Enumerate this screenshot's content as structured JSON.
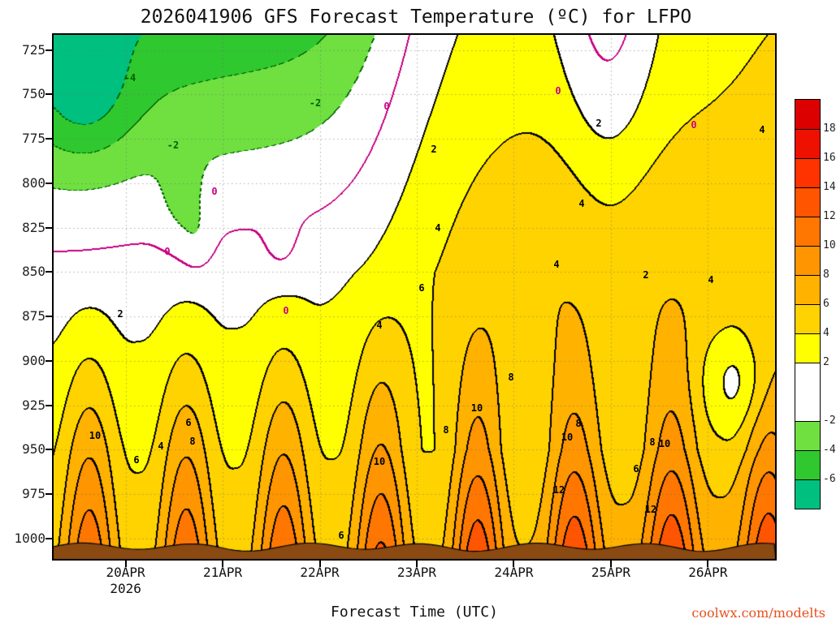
{
  "chart_data": {
    "type": "contour",
    "title": "2026041906 GFS Forecast Temperature (ºC) for LFPO",
    "xlabel": "Forecast Time (UTC)",
    "x_year": "2026",
    "x_ticks": [
      "20APR",
      "21APR",
      "22APR",
      "23APR",
      "24APR",
      "25APR",
      "26APR"
    ],
    "y_ticks": [
      "725",
      "750",
      "775",
      "800",
      "825",
      "850",
      "875",
      "900",
      "925",
      "950",
      "975",
      "1000"
    ],
    "y_tick_pressures": [
      725,
      750,
      775,
      800,
      825,
      850,
      875,
      900,
      925,
      950,
      975,
      1000
    ],
    "y_axis_range": {
      "top_pressure": 716,
      "bottom_pressure": 1012
    },
    "time_axis": {
      "start_hour_utc": 6,
      "total_days": 7.45,
      "first_tick_day": 0.75,
      "tick_interval_days": 1
    },
    "fill_levels": [
      -6,
      -4,
      -2,
      2,
      4,
      6,
      8,
      10,
      12,
      14,
      16,
      18
    ],
    "fill_colors": [
      "#00c080",
      "#2fc82f",
      "#6fe040",
      "#ffffff",
      "#ffff00",
      "#ffd300",
      "#ffb200",
      "#ff9500",
      "#ff7700",
      "#ff5500",
      "#ff3300",
      "#ee1100",
      "#dd0000"
    ],
    "contour_levels": [
      -6,
      -4,
      -2,
      0,
      2,
      4,
      6,
      8,
      10,
      12,
      14
    ],
    "line_colors": {
      "zero": "#c80082",
      "positive": "#000000",
      "negative": "#006400"
    },
    "grid_color": "#6e6e6e",
    "terrain_color": "#8a4a12",
    "colorbar": {
      "labels": [
        "18",
        "16",
        "14",
        "12",
        "10",
        "8",
        "6",
        "4",
        "2",
        "-2",
        "-4",
        "-6"
      ],
      "colors_top_to_bottom": [
        "#dd0000",
        "#ee1100",
        "#ff3300",
        "#ff5500",
        "#ff7700",
        "#ff9500",
        "#ffb200",
        "#ffd300",
        "#ffff00",
        "#ffffff",
        "#6fe040",
        "#2fc82f",
        "#00c080"
      ],
      "double_height_index": 9
    },
    "contour_labels": [
      {
        "text": "-4",
        "x": 160,
        "y": 96,
        "c": "negative"
      },
      {
        "text": "-2",
        "x": 213,
        "y": 179,
        "c": "negative"
      },
      {
        "text": "-2",
        "x": 388,
        "y": 127,
        "c": "negative"
      },
      {
        "text": "0",
        "x": 476,
        "y": 131,
        "c": "zero"
      },
      {
        "text": "0",
        "x": 687,
        "y": 112,
        "c": "zero"
      },
      {
        "text": "0",
        "x": 854,
        "y": 154,
        "c": "zero"
      },
      {
        "text": "0",
        "x": 264,
        "y": 236,
        "c": "zero"
      },
      {
        "text": "0",
        "x": 206,
        "y": 310,
        "c": "zero"
      },
      {
        "text": "0",
        "x": 352,
        "y": 383,
        "c": "zero"
      },
      {
        "text": "2",
        "x": 534,
        "y": 184,
        "c": "positive"
      },
      {
        "text": "2",
        "x": 148,
        "y": 387,
        "c": "positive"
      },
      {
        "text": "2",
        "x": 737,
        "y": 152,
        "c": "positive"
      },
      {
        "text": "2",
        "x": 795,
        "y": 339,
        "c": "positive"
      },
      {
        "text": "4",
        "x": 938,
        "y": 160,
        "c": "positive"
      },
      {
        "text": "4",
        "x": 539,
        "y": 281,
        "c": "positive"
      },
      {
        "text": "4",
        "x": 716,
        "y": 251,
        "c": "positive"
      },
      {
        "text": "4",
        "x": 467,
        "y": 401,
        "c": "positive"
      },
      {
        "text": "4",
        "x": 685,
        "y": 326,
        "c": "positive"
      },
      {
        "text": "4",
        "x": 875,
        "y": 345,
        "c": "positive"
      },
      {
        "text": "4",
        "x": 198,
        "y": 550,
        "c": "positive"
      },
      {
        "text": "6",
        "x": 519,
        "y": 355,
        "c": "positive"
      },
      {
        "text": "6",
        "x": 232,
        "y": 521,
        "c": "positive"
      },
      {
        "text": "6",
        "x": 168,
        "y": 567,
        "c": "positive"
      },
      {
        "text": "6",
        "x": 783,
        "y": 578,
        "c": "positive"
      },
      {
        "text": "6",
        "x": 420,
        "y": 660,
        "c": "positive"
      },
      {
        "text": "8",
        "x": 629,
        "y": 465,
        "c": "positive"
      },
      {
        "text": "8",
        "x": 549,
        "y": 530,
        "c": "positive"
      },
      {
        "text": "8",
        "x": 712,
        "y": 522,
        "c": "positive"
      },
      {
        "text": "8",
        "x": 803,
        "y": 545,
        "c": "positive"
      },
      {
        "text": "8",
        "x": 237,
        "y": 544,
        "c": "positive"
      },
      {
        "text": "10",
        "x": 117,
        "y": 537,
        "c": "positive"
      },
      {
        "text": "10",
        "x": 587,
        "y": 503,
        "c": "positive"
      },
      {
        "text": "10",
        "x": 467,
        "y": 569,
        "c": "positive"
      },
      {
        "text": "10",
        "x": 698,
        "y": 539,
        "c": "positive"
      },
      {
        "text": "10",
        "x": 818,
        "y": 547,
        "c": "positive"
      },
      {
        "text": "12",
        "x": 688,
        "y": 604,
        "c": "positive"
      },
      {
        "text": "12",
        "x": 801,
        "y": 628,
        "c": "positive"
      }
    ],
    "watermark": "coolwx.com/modelts"
  }
}
